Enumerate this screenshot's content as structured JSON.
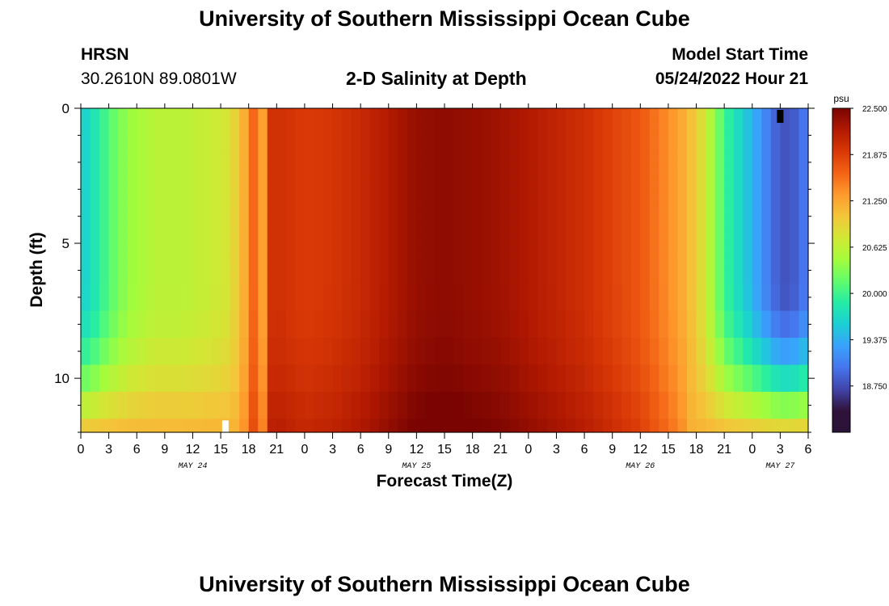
{
  "header": {
    "title": "University of Southern Mississippi Ocean Cube",
    "station": "HRSN",
    "coords": "30.2610N  89.0801W",
    "subtitle": "2-D Salinity at Depth",
    "start_label": "Model Start Time",
    "start_date": "05/24/2022 Hour 21"
  },
  "footer": {
    "title": "University of Southern Mississippi Ocean Cube"
  },
  "chart_data": {
    "type": "heatmap",
    "title": "2-D Salinity at Depth",
    "xlabel": "Forecast Time(Z)",
    "ylabel": "Depth (ft)",
    "x_tick_labels": [
      "0",
      "3",
      "6",
      "9",
      "12",
      "15",
      "18",
      "21",
      "0",
      "3",
      "6",
      "9",
      "12",
      "15",
      "18",
      "21",
      "0",
      "3",
      "6",
      "9",
      "12",
      "15",
      "18",
      "21",
      "0",
      "3",
      "6"
    ],
    "date_labels": [
      {
        "label": "MAY 24",
        "hour": 12
      },
      {
        "label": "MAY 25",
        "hour": 36
      },
      {
        "label": "MAY 26",
        "hour": 60
      },
      {
        "label": "MAY 27",
        "hour": 75
      }
    ],
    "x_range_hours": [
      0,
      78
    ],
    "y_tick_labels": [
      "0",
      "5",
      "10"
    ],
    "y_ticks": [
      0,
      5,
      10
    ],
    "ylim": [
      0,
      12
    ],
    "y_reversed": true,
    "colorbar": {
      "unit": "psu",
      "min": 18.125,
      "max": 22.5,
      "labels": [
        "22.500",
        "21.875",
        "21.250",
        "20.625",
        "20.000",
        "19.375",
        "18.750"
      ],
      "colors": [
        "#2a1337",
        "#30123b",
        "#4145ab",
        "#4675ed",
        "#39a2fc",
        "#1bcfd4",
        "#24eca6",
        "#61fc6c",
        "#a4fc3b",
        "#d1e834",
        "#f3c63a",
        "#fe9b2d",
        "#f36315",
        "#d93806",
        "#b11901",
        "#7a0402"
      ]
    },
    "salinity_profile": {
      "hours": [
        0,
        1,
        2,
        3,
        5,
        8,
        11,
        14,
        16,
        17.5,
        18.5,
        19.5,
        20,
        21,
        24,
        27,
        30,
        33,
        36,
        39,
        42,
        45,
        48,
        51,
        54,
        57,
        60,
        62,
        64,
        66,
        67,
        68,
        69,
        70,
        71,
        72,
        73,
        74,
        75,
        76,
        77,
        78
      ],
      "surface": [
        19.6,
        19.7,
        19.9,
        20.1,
        20.4,
        20.6,
        20.6,
        20.7,
        20.8,
        21.2,
        21.6,
        21.3,
        21.95,
        22.0,
        21.9,
        21.95,
        22.05,
        22.2,
        22.35,
        22.4,
        22.35,
        22.3,
        22.2,
        22.1,
        22.0,
        21.85,
        21.7,
        21.5,
        21.3,
        21.0,
        20.7,
        20.4,
        20.0,
        19.8,
        19.6,
        19.4,
        19.2,
        19.0,
        18.8,
        18.8,
        18.9,
        19.1
      ]
    },
    "annotations": [
      {
        "type": "white-cell",
        "hour": 15.5,
        "depth": 11.8
      },
      {
        "type": "black-cell",
        "hour": 75.0,
        "depth": 0.3
      }
    ]
  }
}
